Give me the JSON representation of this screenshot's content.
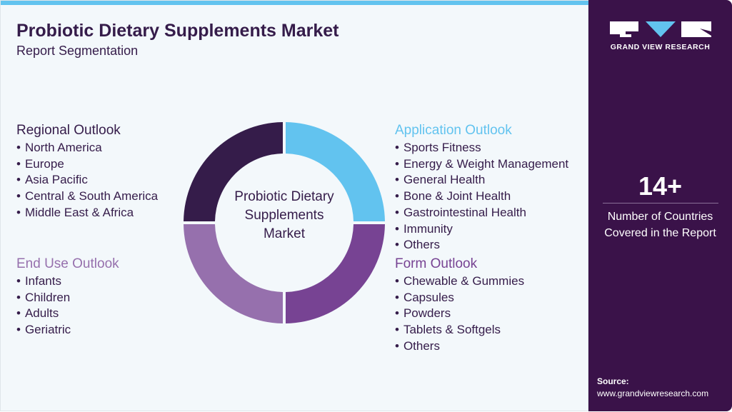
{
  "header": {
    "title": "Probiotic Dietary Supplements Market",
    "subtitle": "Report Segmentation"
  },
  "center_label": "Probiotic Dietary Supplements Market",
  "segments": [
    {
      "title": "Regional Outlook",
      "color": "#351c4a",
      "items": [
        "North America",
        "Europe",
        "Asia Pacific",
        "Central & South America",
        "Middle East & Africa"
      ]
    },
    {
      "title": "End Use Outlook",
      "color": "#9670ad",
      "items": [
        "Infants",
        "Children",
        "Adults",
        "Geriatric"
      ]
    },
    {
      "title": "Application Outlook",
      "color": "#62c3ef",
      "items": [
        "Sports Fitness",
        "Energy & Weight Management",
        "General Health",
        "Bone & Joint Health",
        "Gastrointestinal Health",
        "Immunity",
        "Others"
      ]
    },
    {
      "title": "Form Outlook",
      "color": "#774393",
      "items": [
        "Chewable & Gummies",
        "Capsules",
        "Powders",
        "Tablets & Softgels",
        "Others"
      ]
    }
  ],
  "sidebar": {
    "logo_text": "GRAND VIEW RESEARCH",
    "stat_value": "14+",
    "stat_caption": "Number of Countries Covered in the Report",
    "source_label": "Source:",
    "source_url": "www.grandviewresearch.com"
  }
}
